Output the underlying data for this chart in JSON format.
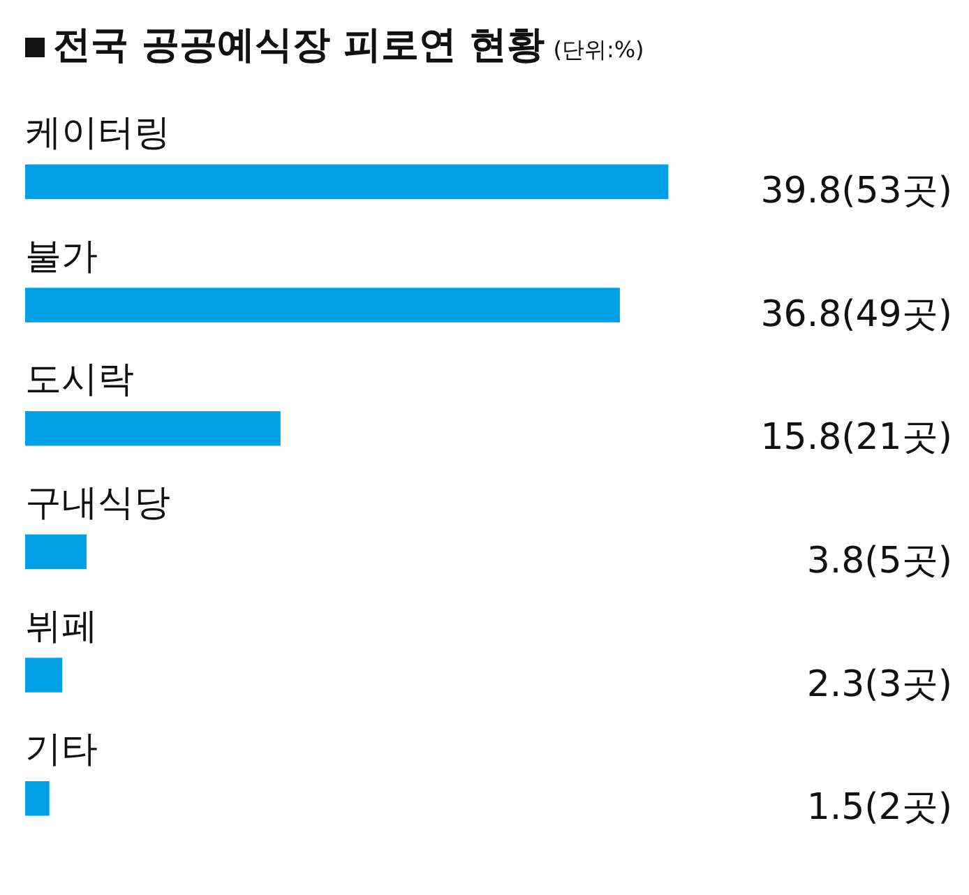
{
  "chart_data": {
    "type": "bar",
    "orientation": "horizontal",
    "title": "전국 공공예식장 피로연 현황",
    "subtitle": "(단위:%)",
    "categories": [
      "케이터링",
      "불가",
      "도시락",
      "구내식당",
      "뷔페",
      "기타"
    ],
    "values": [
      39.8,
      36.8,
      15.8,
      3.8,
      2.3,
      1.5
    ],
    "value_labels": [
      "39.8(53곳)",
      "36.8(49곳)",
      "15.8(21곳)",
      "3.8(5곳)",
      "2.3(3곳)",
      "1.5(2곳)"
    ],
    "color": "#00a0e6",
    "tick_labels": false
  }
}
